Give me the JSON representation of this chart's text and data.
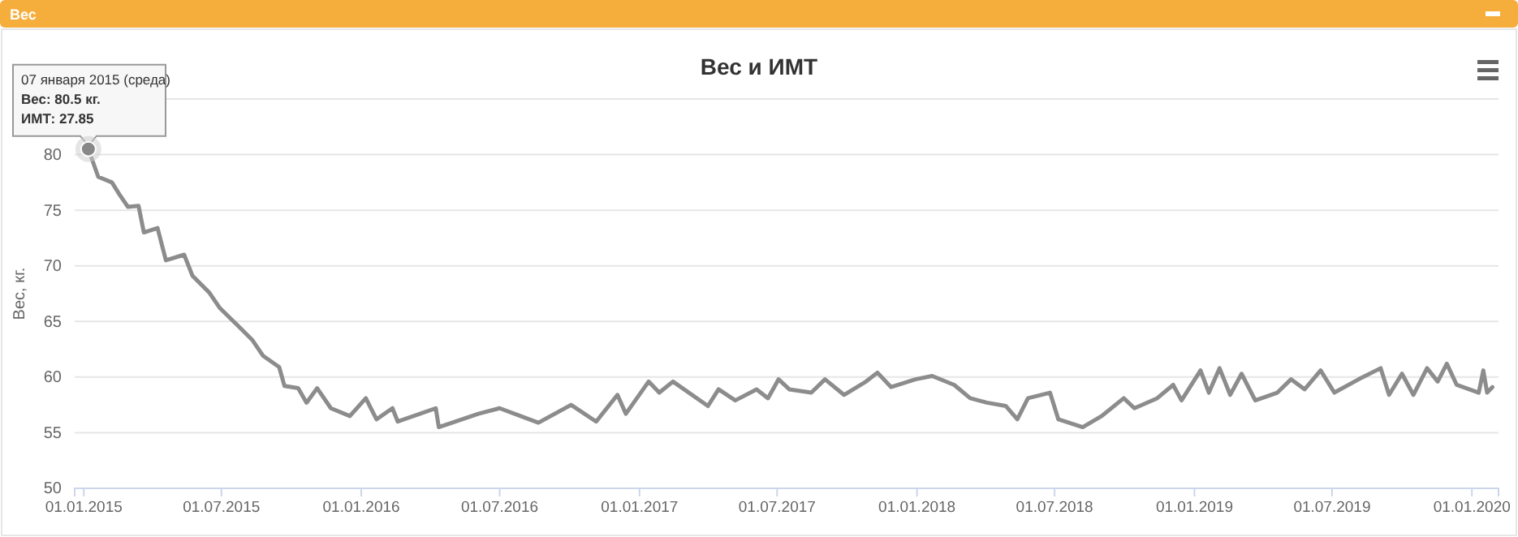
{
  "chart_data": {
    "type": "line",
    "title": "Вес и ИМТ",
    "ylabel": "Вес, кг.",
    "annotations": [
      "Вес",
      {
        "text": "07 января 2015 (среда)\nВес: 80.5 кг.\nИМТ: 27.85",
        "x": "2015-01-07",
        "y": 80.5
      }
    ],
    "xlim": [
      "2014-12-20",
      "2020-02-05"
    ],
    "xticks": [
      {
        "value": "2015-01-01",
        "label": "01.01.2015"
      },
      {
        "value": "2015-07-01",
        "label": "01.07.2015"
      },
      {
        "value": "2016-01-01",
        "label": "01.01.2016"
      },
      {
        "value": "2016-07-01",
        "label": "01.07.2016"
      },
      {
        "value": "2017-01-01",
        "label": "01.01.2017"
      },
      {
        "value": "2017-07-01",
        "label": "01.07.2017"
      },
      {
        "value": "2018-01-01",
        "label": "01.01.2018"
      },
      {
        "value": "2018-07-01",
        "label": "01.07.2018"
      },
      {
        "value": "2019-01-01",
        "label": "01.01.2019"
      },
      {
        "value": "2019-07-01",
        "label": "01.07.2019"
      },
      {
        "value": "2020-01-01",
        "label": "01.01.2020"
      }
    ],
    "ylim": [
      50,
      85
    ],
    "yticks": [
      50,
      55,
      60,
      65,
      70,
      75,
      80,
      {
        "value": 85,
        "label": null
      }
    ],
    "grid": "y",
    "marker": "none",
    "line_style": "solid",
    "x": [
      "2015-01-07",
      "2015-01-20",
      "2015-02-07",
      "2015-02-17",
      "2015-02-28",
      "2015-03-14",
      "2015-03-21",
      "2015-04-08",
      "2015-04-19",
      "2015-05-13",
      "2015-05-24",
      "2015-06-15",
      "2015-06-29",
      "2015-07-20",
      "2015-08-11",
      "2015-08-25",
      "2015-09-15",
      "2015-09-22",
      "2015-10-10",
      "2015-10-21",
      "2015-11-04",
      "2015-11-22",
      "2015-12-17",
      "2016-01-07",
      "2016-01-21",
      "2016-02-11",
      "2016-02-18",
      "2016-04-08",
      "2016-04-12",
      "2016-06-03",
      "2016-07-01",
      "2016-08-21",
      "2016-10-03",
      "2016-11-05",
      "2016-12-03",
      "2016-12-14",
      "2017-01-13",
      "2017-01-27",
      "2017-02-14",
      "2017-04-01",
      "2017-04-15",
      "2017-05-07",
      "2017-06-04",
      "2017-06-19",
      "2017-07-03",
      "2017-07-17",
      "2017-08-15",
      "2017-09-02",
      "2017-09-27",
      "2017-10-26",
      "2017-11-10",
      "2017-11-28",
      "2017-12-30",
      "2018-01-21",
      "2018-02-19",
      "2018-03-12",
      "2018-04-03",
      "2018-04-28",
      "2018-05-13",
      "2018-05-27",
      "2018-06-25",
      "2018-07-06",
      "2018-08-07",
      "2018-09-01",
      "2018-09-30",
      "2018-10-14",
      "2018-11-13",
      "2018-12-04",
      "2018-12-15",
      "2019-01-09",
      "2019-01-20",
      "2019-02-03",
      "2019-02-17",
      "2019-03-04",
      "2019-03-22",
      "2019-04-20",
      "2019-05-08",
      "2019-05-26",
      "2019-06-16",
      "2019-07-04",
      "2019-08-05",
      "2019-09-03",
      "2019-09-14",
      "2019-10-01",
      "2019-10-16",
      "2019-11-03",
      "2019-11-17",
      "2019-11-29",
      "2019-12-12",
      "2020-01-10",
      "2020-01-16",
      "2020-01-21",
      "2020-01-28"
    ],
    "series": [
      {
        "color": "#8c8c8c",
        "values": [
          80.5,
          78,
          77.5,
          76.4,
          75.3,
          75.4,
          73,
          73.4,
          70.5,
          71,
          69.1,
          67.6,
          66.2,
          64.8,
          63.3,
          61.9,
          60.9,
          59.2,
          59,
          57.7,
          59,
          57.2,
          56.5,
          58.1,
          56.2,
          57.2,
          56,
          57.2,
          55.5,
          56.7,
          57.2,
          55.9,
          57.5,
          56,
          58.4,
          56.7,
          59.6,
          58.6,
          59.6,
          57.4,
          58.9,
          57.9,
          58.9,
          58.1,
          59.8,
          58.9,
          58.6,
          59.8,
          58.4,
          59.6,
          60.4,
          59.1,
          59.8,
          60.1,
          59.3,
          58.1,
          57.7,
          57.4,
          56.2,
          58.1,
          58.6,
          56.2,
          55.5,
          56.5,
          58.1,
          57.2,
          58.1,
          59.3,
          57.9,
          60.6,
          58.6,
          60.8,
          58.4,
          60.3,
          57.9,
          58.6,
          59.8,
          58.9,
          60.6,
          58.6,
          59.8,
          60.8,
          58.4,
          60.3,
          58.4,
          60.8,
          59.6,
          61.2,
          59.3,
          58.6,
          60.6,
          58.6,
          59.1
        ]
      }
    ]
  }
}
